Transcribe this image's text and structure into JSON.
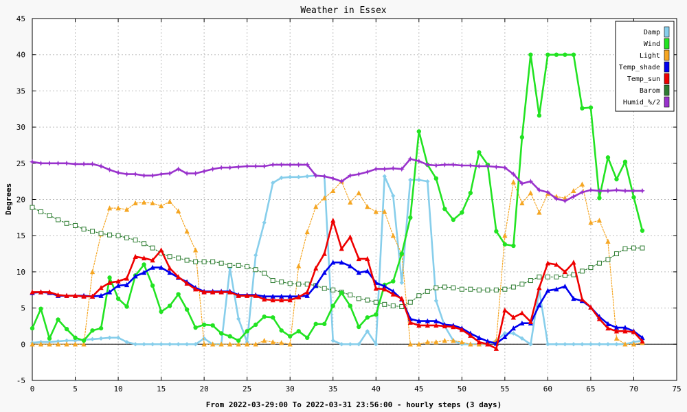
{
  "chart_data": {
    "type": "line",
    "title": "Weather in Essex",
    "xlabel": "From 2022-03-29:00 To 2022-03-31 23:56:00 - hourly steps (3 days)",
    "ylabel": "Degrees",
    "xlim": [
      0,
      75
    ],
    "ylim": [
      -5,
      45
    ],
    "xticks": [
      0,
      5,
      10,
      15,
      20,
      25,
      30,
      35,
      40,
      45,
      50,
      55,
      60,
      65,
      70,
      75
    ],
    "yticks": [
      -5,
      0,
      5,
      10,
      15,
      20,
      25,
      30,
      35,
      40,
      45
    ],
    "grid": true,
    "legend_position": "top-right",
    "series": [
      {
        "name": "Damp",
        "color": "#87ceeb",
        "marker": "diamond",
        "dotted": false,
        "values": [
          0.2,
          0.3,
          0.3,
          0.4,
          0.5,
          0.5,
          0.6,
          0.7,
          0.8,
          0.9,
          0.9,
          0.3,
          0,
          0,
          0,
          0,
          0,
          0,
          0,
          0,
          0.8,
          0,
          0,
          10.5,
          3.5,
          0.3,
          12.3,
          16.8,
          22.3,
          23,
          23.1,
          23.1,
          23.2,
          23.3,
          23.2,
          0.5,
          0,
          0,
          0,
          1.8,
          0,
          23.2,
          20.5,
          8.5,
          22.7,
          22.7,
          22.5,
          6,
          2.5,
          0.5,
          0,
          0,
          0,
          0,
          0.5,
          1.5,
          1.5,
          0.8,
          0,
          7.5,
          0,
          0,
          0,
          0,
          0,
          0,
          0,
          0,
          0,
          0,
          0.3,
          0.5
        ]
      },
      {
        "name": "Wind",
        "color": "#22e322",
        "marker": "circle",
        "dotted": false,
        "values": [
          2.2,
          4.9,
          0.8,
          3.4,
          2.1,
          0.9,
          0.5,
          1.9,
          2.2,
          9.2,
          6.3,
          5.2,
          9.5,
          11,
          8.1,
          4.5,
          5.3,
          6.9,
          4.8,
          2.3,
          2.7,
          2.6,
          1.5,
          1.1,
          0.5,
          1.8,
          2.7,
          3.8,
          3.7,
          1.9,
          1.1,
          1.8,
          0.9,
          2.8,
          2.8,
          5.3,
          7.1,
          5.3,
          2.4,
          3.7,
          4.1,
          8.2,
          8.7,
          12.5,
          17.5,
          29.4,
          24.8,
          22.9,
          18.7,
          17.2,
          18.2,
          20.9,
          26.5,
          24.8,
          15.6,
          13.8,
          13.6,
          28.6,
          40,
          31.6,
          40,
          40,
          40,
          40,
          32.6,
          32.7,
          20.2,
          25.8,
          22.8,
          25.2,
          20.3,
          15.7
        ]
      },
      {
        "name": "Light",
        "color": "#f5a623",
        "marker": "triangle",
        "dotted": true,
        "values": [
          0,
          0,
          0,
          0,
          0,
          0,
          0,
          10,
          15.2,
          18.8,
          18.8,
          18.6,
          19.5,
          19.6,
          19.5,
          19.1,
          19.7,
          18.4,
          15.6,
          13,
          0,
          0,
          0,
          0,
          0,
          0,
          0,
          0.5,
          0.3,
          0.2,
          0,
          10.8,
          15.5,
          19,
          20.2,
          21.2,
          22.5,
          19.6,
          20.9,
          19,
          18.3,
          18.3,
          15,
          12.5,
          0,
          0,
          0.3,
          0.3,
          0.5,
          0.5,
          0.3,
          0,
          0,
          0,
          0.5,
          15,
          22.4,
          19.5,
          20.9,
          18.2,
          20.8,
          20.4,
          20.2,
          21.2,
          22.1,
          16.8,
          17.1,
          14.2,
          0.8,
          0,
          0,
          0.2
        ]
      },
      {
        "name": "Temp_shade",
        "color": "#0000ee",
        "marker": "triangle",
        "dotted": false,
        "values": [
          7.1,
          7.2,
          7.1,
          6.7,
          6.7,
          6.7,
          6.7,
          6.6,
          6.7,
          7.2,
          8.1,
          8.2,
          9.4,
          9.9,
          10.6,
          10.6,
          9.9,
          9.2,
          8.6,
          7.8,
          7.3,
          7.3,
          7.3,
          7.3,
          6.8,
          6.8,
          6.8,
          6.6,
          6.6,
          6.6,
          6.6,
          6.6,
          6.7,
          8.1,
          9.9,
          11.3,
          11.3,
          10.8,
          9.9,
          10.1,
          8.5,
          8,
          7.3,
          6.2,
          3.5,
          3.2,
          3.2,
          3.2,
          2.7,
          2.6,
          2.2,
          1.5,
          0.9,
          0.4,
          0.1,
          1,
          2.2,
          2.9,
          2.9,
          5.4,
          7.4,
          7.6,
          8,
          6.3,
          6,
          5.1,
          3.8,
          2.8,
          2.3,
          2.3,
          1.8,
          0.9
        ]
      },
      {
        "name": "Temp_sun",
        "color": "#ee0000",
        "marker": "triangle",
        "dotted": false,
        "values": [
          7.2,
          7.2,
          7.2,
          6.8,
          6.7,
          6.7,
          6.6,
          6.6,
          7.8,
          8.5,
          8.7,
          9.1,
          12.1,
          11.9,
          11.6,
          13,
          10.5,
          9.3,
          8.4,
          7.6,
          7.2,
          7.2,
          7.2,
          7.2,
          6.7,
          6.7,
          6.7,
          6.2,
          6.1,
          6.1,
          6.1,
          6.5,
          7.2,
          10.5,
          12.5,
          17.1,
          13.2,
          14.8,
          11.8,
          11.8,
          7.7,
          7.6,
          6.9,
          6.3,
          3,
          2.6,
          2.6,
          2.6,
          2.5,
          2.4,
          2,
          1.2,
          0.3,
          0,
          -0.6,
          4.7,
          3.7,
          4.3,
          3.1,
          7.8,
          11.2,
          11,
          10,
          11.3,
          6.2,
          5.1,
          3.5,
          2.2,
          1.8,
          1.8,
          1.7,
          0.4
        ]
      },
      {
        "name": "Barom",
        "color": "#2e7d32",
        "marker": "square",
        "dotted": true,
        "values": [
          18.9,
          18.3,
          17.8,
          17.2,
          16.7,
          16.4,
          15.9,
          15.6,
          15.3,
          15.1,
          15,
          14.7,
          14.4,
          13.9,
          13.3,
          12.6,
          12.1,
          11.9,
          11.6,
          11.4,
          11.4,
          11.4,
          11.2,
          10.9,
          10.9,
          10.7,
          10.3,
          9.8,
          8.8,
          8.6,
          8.4,
          8.3,
          8.3,
          8.1,
          7.7,
          7.5,
          7.2,
          6.8,
          6.3,
          6.1,
          5.8,
          5.5,
          5.3,
          5.2,
          5.8,
          6.7,
          7.3,
          7.8,
          7.9,
          7.8,
          7.6,
          7.6,
          7.5,
          7.5,
          7.5,
          7.6,
          7.9,
          8.3,
          8.8,
          9.3,
          9.3,
          9.3,
          9.5,
          9.6,
          10.1,
          10.6,
          11.2,
          11.7,
          12.5,
          13.2,
          13.3,
          13.3
        ]
      },
      {
        "name": "Humid_%/2",
        "color": "#9932cc",
        "marker": "star",
        "dotted": false,
        "values": [
          25.2,
          25,
          25,
          25,
          25,
          24.9,
          24.9,
          24.9,
          24.6,
          24.1,
          23.7,
          23.5,
          23.5,
          23.3,
          23.3,
          23.5,
          23.6,
          24.2,
          23.6,
          23.6,
          23.9,
          24.2,
          24.4,
          24.4,
          24.5,
          24.6,
          24.6,
          24.6,
          24.8,
          24.8,
          24.8,
          24.8,
          24.8,
          23.3,
          23.2,
          22.9,
          22.5,
          23.3,
          23.5,
          23.8,
          24.2,
          24.2,
          24.3,
          24.2,
          25.6,
          25.3,
          24.8,
          24.7,
          24.8,
          24.8,
          24.7,
          24.7,
          24.6,
          24.6,
          24.5,
          24.4,
          23.5,
          22.2,
          22.5,
          21.3,
          21,
          20.1,
          19.8,
          20.4,
          21,
          21.3,
          21.2,
          21.2,
          21.3,
          21.2,
          21.2,
          21.2
        ]
      }
    ]
  }
}
